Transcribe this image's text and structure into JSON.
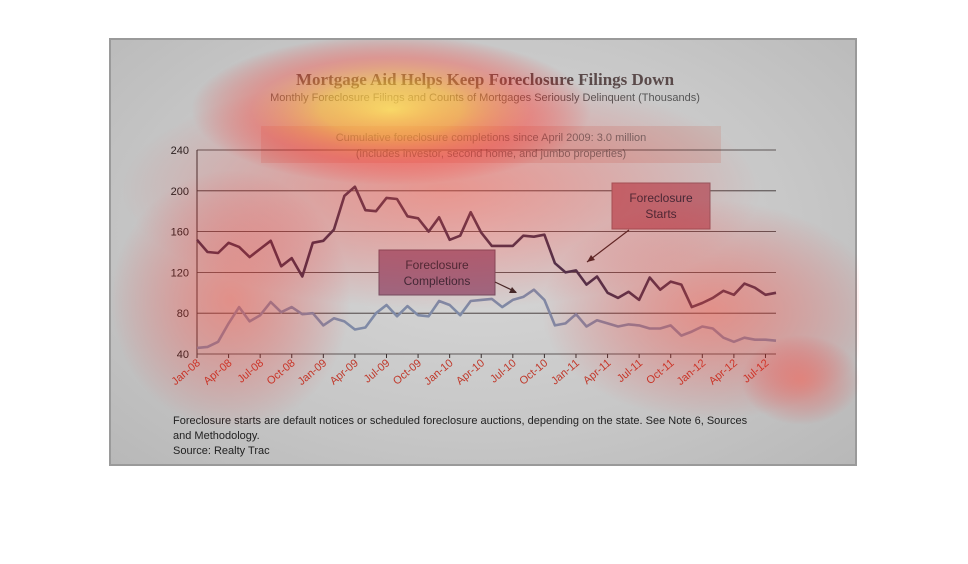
{
  "chart_data": {
    "type": "line",
    "title": "Mortgage Aid Helps Keep Foreclosure Filings Down",
    "subtitle": "Monthly Foreclosure Filings and Counts of Mortgages Seriously Delinquent (Thousands)",
    "callout_text": [
      "Cumulative foreclosure completions since April 2009: 3.0 million",
      "(includes investor, second home, and jumbo properties)"
    ],
    "annotations": {
      "starts": [
        "Foreclosure",
        "Starts"
      ],
      "completions": [
        "Foreclosure",
        "Completions"
      ]
    },
    "yticks": [
      "240",
      "200",
      "160",
      "120",
      "80",
      "40"
    ],
    "ylim": [
      40,
      240
    ],
    "grid": true,
    "xtick_labels": [
      "Jan-08",
      "Apr-08",
      "Jul-08",
      "Oct-08",
      "Jan-09",
      "Apr-09",
      "Jul-09",
      "Oct-09",
      "Jan-10",
      "Apr-10",
      "Jul-10",
      "Oct-10",
      "Jan-11",
      "Apr-11",
      "Jul-11",
      "Oct-11",
      "Jan-12",
      "Apr-12",
      "Jul-12"
    ],
    "series": [
      {
        "name": "Foreclosure Starts",
        "color": "#3b3450",
        "values": [
          152,
          140,
          139,
          149,
          145,
          135,
          143,
          151,
          126,
          134,
          116,
          149,
          151,
          162,
          195,
          204,
          181,
          180,
          193,
          192,
          175,
          173,
          160,
          174,
          152,
          156,
          179,
          159,
          146,
          146,
          146,
          156,
          155,
          157,
          129,
          120,
          122,
          108,
          116,
          100,
          95,
          101,
          93,
          115,
          103,
          111,
          108,
          86,
          90,
          95,
          102,
          98,
          109,
          105,
          98,
          100
        ]
      },
      {
        "name": "Foreclosure Completions",
        "color": "#7f8aa6",
        "values": [
          46,
          47,
          52,
          70,
          86,
          72,
          78,
          91,
          81,
          86,
          79,
          80,
          68,
          75,
          72,
          64,
          66,
          80,
          88,
          77,
          87,
          78,
          77,
          92,
          88,
          78,
          92,
          93,
          94,
          86,
          93,
          96,
          103,
          93,
          68,
          70,
          79,
          67,
          73,
          70,
          67,
          69,
          68,
          65,
          65,
          68,
          58,
          62,
          67,
          65,
          56,
          52,
          56,
          54,
          54,
          53
        ]
      }
    ]
  },
  "footnote": [
    "Foreclosure starts are default notices or scheduled foreclosure auctions, depending on the state. See Note 6, Sources",
    "and Methodology.",
    "Source: Realty Trac"
  ]
}
